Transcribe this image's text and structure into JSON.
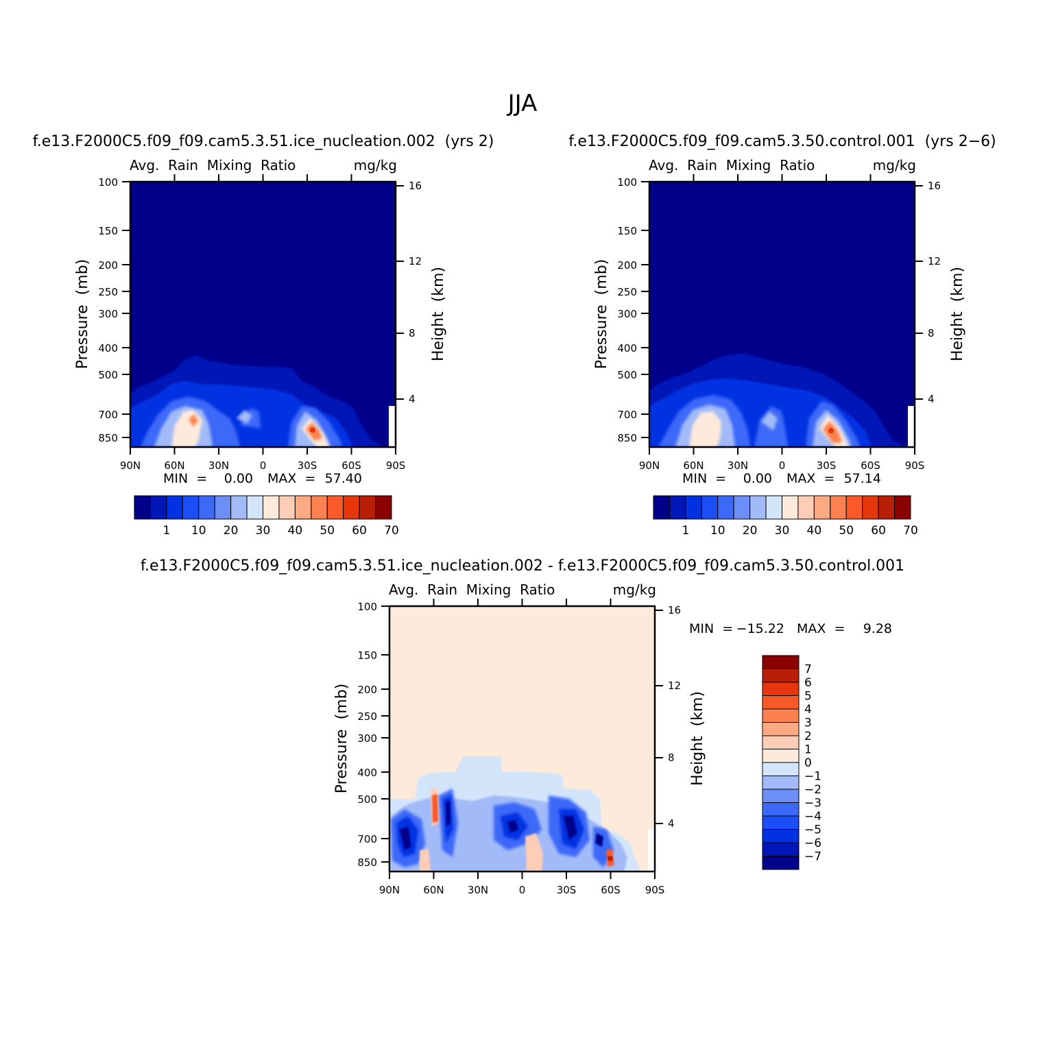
{
  "figure": {
    "title": "JJA"
  },
  "chart_data": [
    {
      "type": "heatmap",
      "panel": "ice_nucleation",
      "case_title": "f.e13.F2000C5.f09_f09.cam5.3.51.ice_nucleation.002  (yrs 2)",
      "left_title": "Avg.  Rain  Mixing  Ratio",
      "units": "mg/kg",
      "ylabel": "Pressure  (mb)",
      "ylabel_right": "Height  (km)",
      "xticks": [
        "90N",
        "60N",
        "30N",
        "0",
        "30S",
        "60S",
        "90S"
      ],
      "yticks": [
        100,
        150,
        200,
        250,
        300,
        400,
        500,
        700,
        850
      ],
      "height_ticks": [
        16,
        12,
        8,
        4
      ],
      "ylim": [
        100,
        900
      ],
      "xlim": [
        90,
        -90
      ],
      "stats": {
        "min_label": "MIN  =",
        "min": "0.00",
        "max_label": "MAX  =",
        "max": "57.40"
      },
      "colorbar": {
        "labels": [
          "1",
          "10",
          "20",
          "30",
          "40",
          "50",
          "60",
          "70"
        ],
        "colors": [
          "#00008b",
          "#0016b6",
          "#0032e2",
          "#1c4ef7",
          "#3d69f8",
          "#6e8ef7",
          "#a2bbf8",
          "#d3e5fb",
          "#feeadb",
          "#fdcdb5",
          "#fbaa83",
          "#fb8250",
          "#fa5a2a",
          "#e6360c",
          "#b91e07",
          "#8b0000"
        ]
      }
    },
    {
      "type": "heatmap",
      "panel": "control",
      "case_title": "f.e13.F2000C5.f09_f09.cam5.3.50.control.001  (yrs 2-6)",
      "left_title": "Avg.  Rain  Mixing  Ratio",
      "units": "mg/kg",
      "ylabel": "Pressure  (mb)",
      "ylabel_right": "Height  (km)",
      "xticks": [
        "90N",
        "60N",
        "30N",
        "0",
        "30S",
        "60S",
        "90S"
      ],
      "yticks": [
        100,
        150,
        200,
        250,
        300,
        400,
        500,
        700,
        850
      ],
      "height_ticks": [
        16,
        12,
        8,
        4
      ],
      "ylim": [
        100,
        900
      ],
      "xlim": [
        90,
        -90
      ],
      "stats": {
        "min_label": "MIN  =",
        "min": "0.00",
        "max_label": "MAX  =",
        "max": "57.14"
      },
      "colorbar": {
        "labels": [
          "1",
          "10",
          "20",
          "30",
          "40",
          "50",
          "60",
          "70"
        ],
        "colors": [
          "#00008b",
          "#0016b6",
          "#0032e2",
          "#1c4ef7",
          "#3d69f8",
          "#6e8ef7",
          "#a2bbf8",
          "#d3e5fb",
          "#feeadb",
          "#fdcdb5",
          "#fbaa83",
          "#fb8250",
          "#fa5a2a",
          "#e6360c",
          "#b91e07",
          "#8b0000"
        ]
      }
    },
    {
      "type": "heatmap",
      "panel": "difference",
      "case_title": "f.e13.F2000C5.f09_f09.cam5.3.51.ice_nucleation.002 - f.e13.F2000C5.f09_f09.cam5.3.50.control.001",
      "left_title": "Avg.  Rain  Mixing  Ratio",
      "units": "mg/kg",
      "ylabel": "Pressure  (mb)",
      "ylabel_right": "Height  (km)",
      "xticks": [
        "90N",
        "60N",
        "30N",
        "0",
        "30S",
        "60S",
        "90S"
      ],
      "yticks": [
        100,
        150,
        200,
        250,
        300,
        400,
        500,
        700,
        850
      ],
      "height_ticks": [
        16,
        12,
        8,
        4
      ],
      "ylim": [
        100,
        900
      ],
      "xlim": [
        90,
        -90
      ],
      "stats": {
        "min_label": "MIN  =",
        "min": "-15.22",
        "max_label": "MAX  =",
        "max": "9.28"
      },
      "colorbar": {
        "labels": [
          "7",
          "6",
          "5",
          "4",
          "3",
          "2",
          "1",
          "0",
          "-1",
          "-2",
          "-3",
          "-4",
          "-5",
          "-6",
          "-7"
        ],
        "colors": [
          "#8b0000",
          "#b91e07",
          "#e6360c",
          "#fa5a2a",
          "#fb8250",
          "#fbaa83",
          "#fdcdb5",
          "#feeadb",
          "#d3e5fb",
          "#a2bbf8",
          "#6e8ef7",
          "#3d69f8",
          "#1c4ef7",
          "#0032e2",
          "#0016b6",
          "#00008b"
        ]
      }
    }
  ]
}
